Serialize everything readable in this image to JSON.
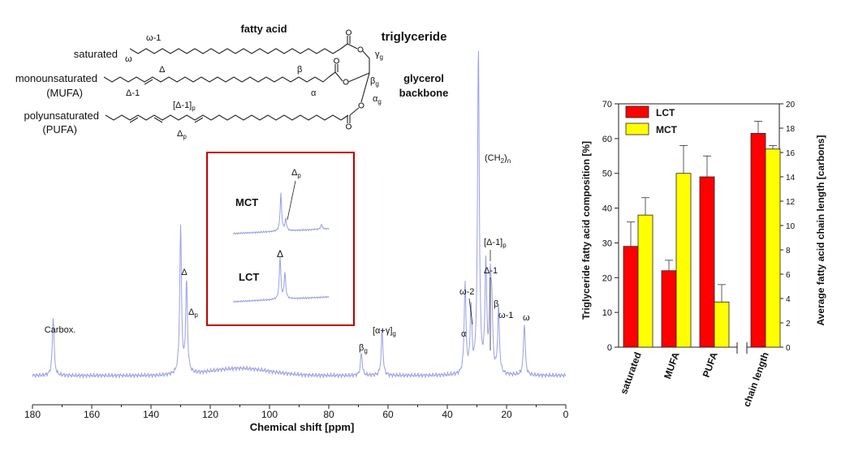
{
  "structure": {
    "fatty_acid_label": "fatty acid",
    "triglyceride_label": "triglyceride",
    "glycerol_label": "glycerol",
    "backbone_label": "backbone",
    "rows": [
      {
        "name": "saturated",
        "sub": ""
      },
      {
        "name": "monounsaturated",
        "sub": "(MUFA)"
      },
      {
        "name": "polyunsaturated",
        "sub": "(PUFA)"
      }
    ],
    "site_labels": {
      "omega_minus_1": "ω-1",
      "omega": "ω",
      "delta": "Δ",
      "delta_minus_1": "Δ-1",
      "beta": "β",
      "alpha": "α",
      "delta_minus_1_p": "[Δ-1]",
      "delta_p": "Δ",
      "p": "p",
      "gamma": "γ",
      "g": "g"
    }
  },
  "inset": {
    "mct_label": "MCT",
    "lct_label": "LCT",
    "delta_p": "Δ",
    "p": "p",
    "delta": "Δ"
  },
  "spectrum_chart": {
    "type": "line",
    "xlabel": "Chemical shift [ppm]",
    "xlim": [
      180,
      0
    ],
    "x_ticks": [
      "180",
      "160",
      "140",
      "120",
      "100",
      "80",
      "60",
      "40",
      "20",
      "0"
    ],
    "peaks_ppm": [
      {
        "label": "Carbox.",
        "ppm": 173,
        "height": 0.18
      },
      {
        "label": "Δ",
        "ppm": 130,
        "height": 0.45
      },
      {
        "label": "Δp",
        "ppm": 128,
        "height": 0.28
      },
      {
        "label": "βg",
        "ppm": 69,
        "height": 0.07
      },
      {
        "label": "[α+γ]g",
        "ppm": 62,
        "height": 0.14
      },
      {
        "label": "α",
        "ppm": 34,
        "height": 0.28
      },
      {
        "label": "ω-2",
        "ppm": 32,
        "height": 0.2
      },
      {
        "label": "(CH2)n",
        "ppm": 29.5,
        "height": 1.0
      },
      {
        "label": "Δ-1",
        "ppm": 27,
        "height": 0.33
      },
      {
        "label": "[Δ-1]p",
        "ppm": 25.5,
        "height": 0.25
      },
      {
        "label": "β",
        "ppm": 25,
        "height": 0.18
      },
      {
        "label": "ω-1",
        "ppm": 22.7,
        "height": 0.2
      },
      {
        "label": "ω",
        "ppm": 14,
        "height": 0.16
      }
    ],
    "peak_labels": {
      "carbox": "Carbox.",
      "delta": "Δ",
      "delta_p": "Δ",
      "p": "p",
      "beta_g": "β",
      "g": "g",
      "alpha_gamma_g": "[α+γ]",
      "alpha": "α",
      "omega_2": "ω-2",
      "ch2n_main": "(CH",
      "ch2n_sub": "2",
      "ch2n_tail": ")",
      "n": "n",
      "delta_1_p": "[Δ-1]",
      "delta_1": "Δ-1",
      "beta": "β",
      "omega_1": "ω-1",
      "omega": "ω"
    },
    "line_color": "#9a9fe6"
  },
  "chart_data": {
    "type": "bar",
    "categories": [
      "saturated",
      "MUFA",
      "PUFA",
      "chain length"
    ],
    "series": [
      {
        "name": "LCT",
        "color": "#ff0000",
        "values": [
          29,
          22,
          49,
          61.5
        ],
        "errors": [
          7,
          3,
          6,
          3.5
        ]
      },
      {
        "name": "MCT",
        "color": "#ffff00",
        "values": [
          38,
          50,
          13,
          57
        ],
        "errors": [
          5,
          8,
          5,
          1
        ]
      }
    ],
    "ylabel": "Triglyceride fatty acid composition [%]",
    "ylim": [
      0,
      70
    ],
    "y_ticks": [
      "0",
      "10",
      "20",
      "30",
      "40",
      "50",
      "60",
      "70"
    ],
    "y2label": "Average fatty acid chain length [carbons]",
    "y2lim": [
      0,
      20
    ],
    "y2_ticks": [
      "0",
      "2",
      "4",
      "6",
      "8",
      "10",
      "12",
      "14",
      "16",
      "18",
      "20"
    ],
    "chain_length_carbons": {
      "LCT": 17.6,
      "MCT": 16.3
    },
    "legend_placement": "top-left"
  }
}
